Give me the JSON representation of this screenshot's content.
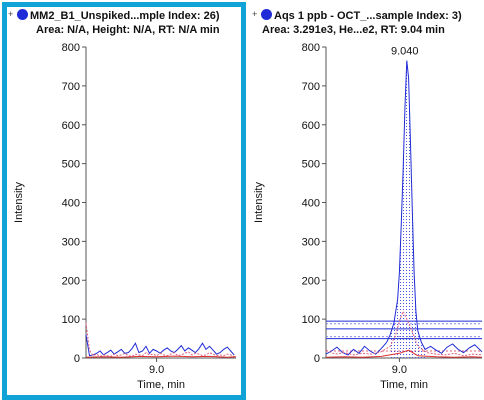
{
  "chart_data": [
    {
      "type": "line",
      "title": "MM2_B1_Unspiked...mple Index: 26)",
      "subtitle": "Area: N/A, Height: N/A, RT: N/A min",
      "xlabel": "Time, min",
      "ylabel": "Intensity",
      "x_ticks": [
        "9.0"
      ],
      "y_ticks": [
        "0",
        "100",
        "200",
        "300",
        "400",
        "500",
        "600",
        "700",
        "800"
      ],
      "xlim": [
        8.6,
        9.45
      ],
      "ylim": [
        0,
        800
      ],
      "selected": true,
      "series": [
        {
          "color": "#1f2bd6",
          "x": [
            8.6,
            8.62,
            8.64,
            8.66,
            8.68,
            8.7,
            8.72,
            8.74,
            8.76,
            8.78,
            8.8,
            8.82,
            8.84,
            8.86,
            8.88,
            8.9,
            8.92,
            8.94,
            8.96,
            8.98,
            9.0,
            9.02,
            9.04,
            9.06,
            9.08,
            9.1,
            9.12,
            9.14,
            9.16,
            9.18,
            9.2,
            9.22,
            9.24,
            9.26,
            9.28,
            9.3,
            9.32,
            9.34,
            9.36,
            9.38,
            9.4,
            9.42,
            9.44
          ],
          "y": [
            60,
            6,
            8,
            12,
            18,
            8,
            14,
            20,
            10,
            16,
            22,
            12,
            14,
            24,
            38,
            14,
            18,
            30,
            12,
            22,
            18,
            12,
            20,
            26,
            18,
            14,
            22,
            32,
            18,
            26,
            20,
            14,
            24,
            38,
            22,
            30,
            20,
            10,
            14,
            22,
            28,
            18,
            8
          ]
        },
        {
          "color": "#e0607e",
          "style": "dotted",
          "x": [
            8.6,
            8.62,
            8.64,
            8.66,
            8.68,
            8.7,
            8.72,
            8.74,
            8.76,
            8.78,
            8.8,
            8.82,
            8.84,
            8.86,
            8.88,
            8.9,
            8.92,
            8.94,
            8.96,
            8.98,
            9.0,
            9.02,
            9.04,
            9.06,
            9.08,
            9.1,
            9.12,
            9.14,
            9.16,
            9.18,
            9.2,
            9.22,
            9.24,
            9.26,
            9.28,
            9.3,
            9.32,
            9.34,
            9.36,
            9.38,
            9.4,
            9.42,
            9.44
          ],
          "y": [
            90,
            20,
            6,
            10,
            4,
            8,
            6,
            4,
            10,
            6,
            8,
            12,
            6,
            4,
            10,
            8,
            6,
            14,
            8,
            10,
            6,
            12,
            8,
            6,
            10,
            14,
            6,
            8,
            12,
            16,
            8,
            12,
            10,
            6,
            8,
            14,
            10,
            6,
            8,
            6,
            10,
            8,
            4
          ]
        },
        {
          "color": "#e03030",
          "x": [
            8.6,
            8.7,
            8.8,
            8.9,
            9.0,
            9.1,
            9.2,
            9.3,
            9.4,
            9.45
          ],
          "y": [
            2,
            3,
            2,
            4,
            3,
            5,
            3,
            4,
            2,
            3
          ]
        }
      ]
    },
    {
      "type": "line",
      "title": "Aqs 1 ppb - OCT_...sample Index: 3)",
      "subtitle": "Area: 3.291e3, He...e2, RT: 9.04 min",
      "xlabel": "Time, min",
      "ylabel": "Intensity",
      "x_ticks": [
        "9.0"
      ],
      "y_ticks": [
        "0",
        "100",
        "200",
        "300",
        "400",
        "500",
        "600",
        "700",
        "800"
      ],
      "xlim": [
        8.6,
        9.45
      ],
      "ylim": [
        0,
        800
      ],
      "peak_label": "9.040",
      "peak_rt": 9.04,
      "peak_height": 765,
      "selected": false,
      "series": [
        {
          "color": "#1f2bd6",
          "x": [
            8.6,
            8.63,
            8.66,
            8.69,
            8.72,
            8.75,
            8.78,
            8.81,
            8.84,
            8.87,
            8.9,
            8.93,
            8.95,
            8.97,
            8.99,
            9.0,
            9.01,
            9.02,
            9.03,
            9.04,
            9.05,
            9.06,
            9.07,
            9.08,
            9.09,
            9.1,
            9.12,
            9.14,
            9.17,
            9.2,
            9.23,
            9.26,
            9.29,
            9.32,
            9.35,
            9.38,
            9.41,
            9.45
          ],
          "y": [
            10,
            18,
            28,
            14,
            8,
            22,
            12,
            30,
            18,
            10,
            24,
            40,
            60,
            90,
            150,
            220,
            340,
            480,
            640,
            765,
            720,
            560,
            380,
            220,
            120,
            70,
            40,
            22,
            30,
            20,
            12,
            28,
            36,
            22,
            14,
            26,
            34,
            16
          ]
        },
        {
          "color": "#e0607e",
          "style": "dotted",
          "x": [
            8.6,
            8.65,
            8.7,
            8.75,
            8.8,
            8.85,
            8.9,
            8.95,
            8.98,
            9.0,
            9.02,
            9.04,
            9.06,
            9.08,
            9.1,
            9.15,
            9.2,
            9.25,
            9.3,
            9.35,
            9.4,
            9.45
          ],
          "y": [
            20,
            10,
            14,
            8,
            12,
            10,
            16,
            30,
            60,
            95,
            120,
            100,
            80,
            55,
            30,
            14,
            10,
            8,
            12,
            6,
            10,
            8
          ]
        },
        {
          "color": "#e03030",
          "x": [
            8.6,
            8.7,
            8.8,
            8.9,
            9.0,
            9.05,
            9.1,
            9.2,
            9.3,
            9.4,
            9.45
          ],
          "y": [
            2,
            3,
            2,
            4,
            12,
            20,
            6,
            3,
            2,
            3,
            2
          ]
        }
      ],
      "reference_lines": [
        {
          "y": 95,
          "color": "#1f2bd6"
        },
        {
          "y": 88,
          "color": "#8a8ae8",
          "style": "dotted"
        },
        {
          "y": 75,
          "color": "#1f2bd6"
        },
        {
          "y": 55,
          "color": "#8a8ae8",
          "style": "dotted"
        },
        {
          "y": 50,
          "color": "#1f2bd6"
        },
        {
          "y": 18,
          "color": "#e0607e",
          "style": "dotted"
        }
      ]
    }
  ]
}
